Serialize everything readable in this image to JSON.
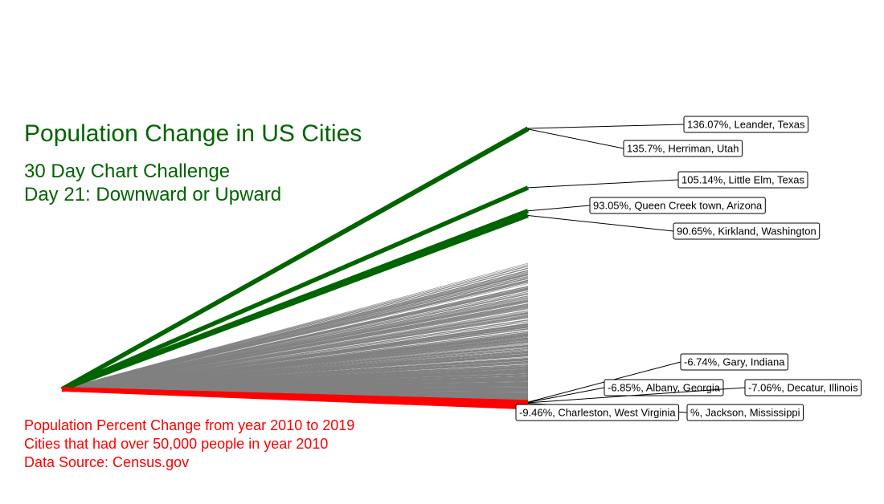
{
  "chart_data": {
    "type": "line",
    "title": "Population Change in US Cities",
    "subtitle": [
      "30 Day Chart Challenge",
      "Day 21: Downward or Upward"
    ],
    "caption": [
      "Population Percent Change from year 2010 to 2019",
      "Cities that had over 50,000 people in year 2010",
      "Data Source: Census.gov"
    ],
    "x": [
      2010,
      2019
    ],
    "baseline": 0,
    "grid": false,
    "legend": "none",
    "colors": {
      "top": "#006400",
      "bottom": "#ff0000",
      "other": "#808080",
      "title": "#006400",
      "caption": "#ff0000"
    },
    "highlight_top": [
      {
        "label": "136.07%, Leander, Texas",
        "value": 136.07
      },
      {
        "label": "135.7%, Herriman, Utah",
        "value": 135.7
      },
      {
        "label": "105.14%, Little Elm, Texas",
        "value": 105.14
      },
      {
        "label": "93.05%, Queen Creek town, Arizona",
        "value": 93.05
      },
      {
        "label": "90.65%, Kirkland, Washington",
        "value": 90.65
      }
    ],
    "highlight_bottom": [
      {
        "label": "-6.74%, Gary, Indiana",
        "value": -6.74
      },
      {
        "label": "-6.85%, Albany, Georgia",
        "value": -6.85
      },
      {
        "label": "-7.06%, Decatur, Illinois",
        "value": -7.06
      },
      {
        "label": "%, Jackson, Mississippi",
        "value": -7.4
      },
      {
        "label": "-9.46%, Charleston, West Virginia",
        "value": -9.46
      }
    ],
    "other_range": [
      -6.7,
      66
    ]
  }
}
